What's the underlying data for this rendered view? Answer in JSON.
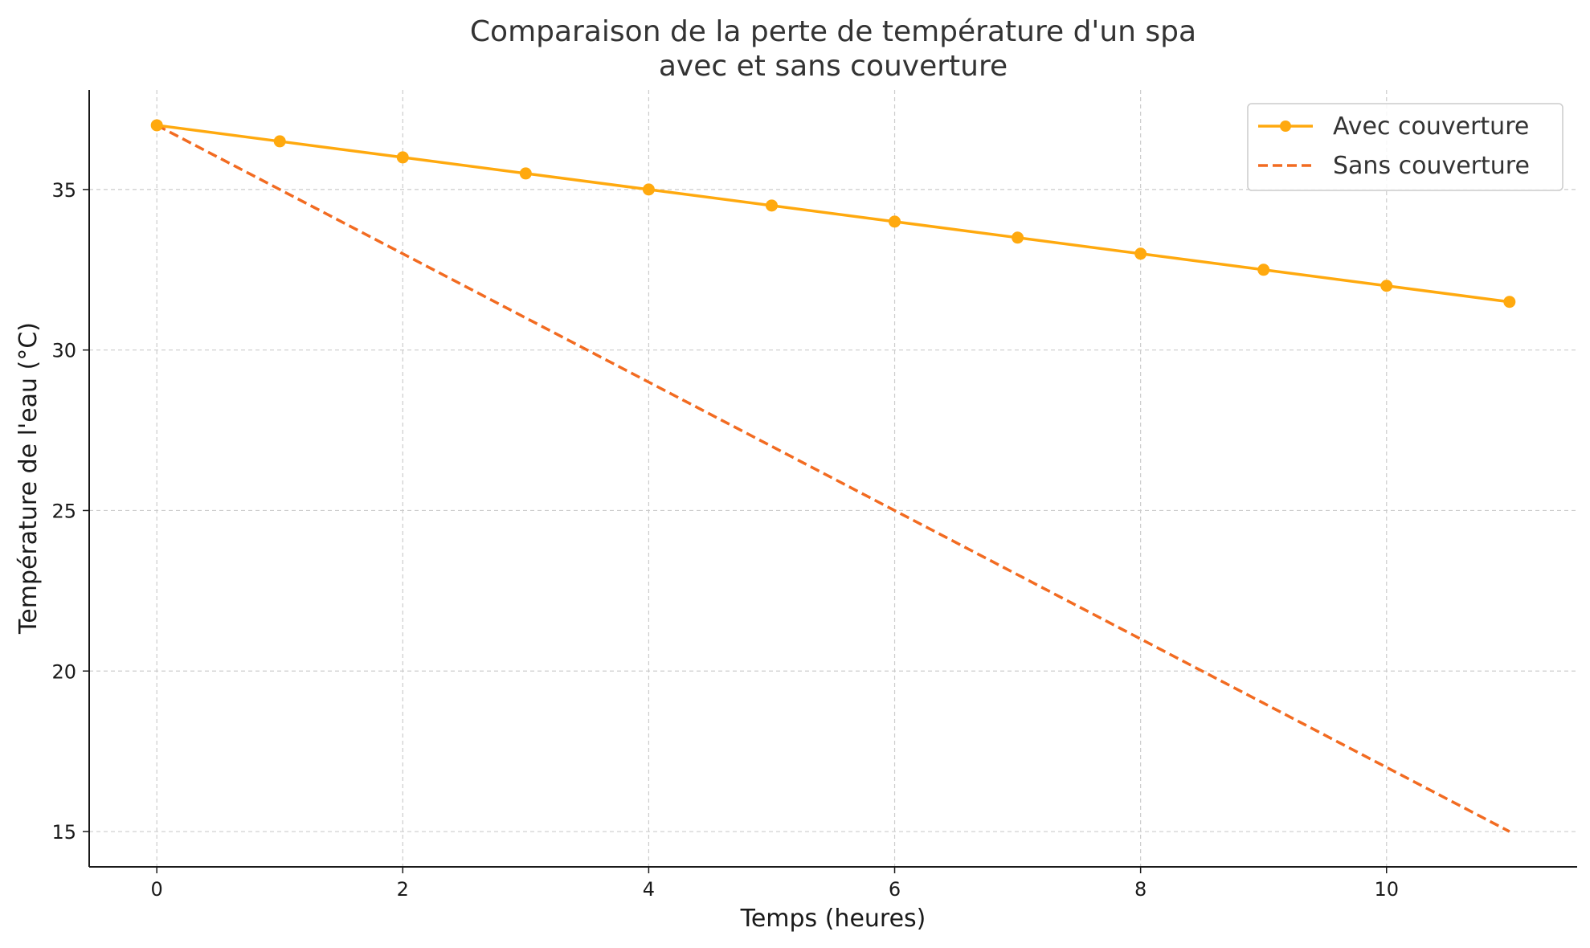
{
  "chart_data": {
    "type": "line",
    "title_line1": "Comparaison de la perte de température d'un spa",
    "title_line2": "avec et sans couverture",
    "xlabel": "Temps (heures)",
    "ylabel": "Température de l'eau (°C)",
    "x": [
      0,
      1,
      2,
      3,
      4,
      5,
      6,
      7,
      8,
      9,
      10,
      11
    ],
    "xlim": [
      -0.55,
      11.55
    ],
    "ylim": [
      13.9,
      38.1
    ],
    "xticks": [
      0,
      2,
      4,
      6,
      8,
      10
    ],
    "yticks": [
      15,
      20,
      25,
      30,
      35
    ],
    "grid": true,
    "legend_position": "top-right",
    "series": [
      {
        "name": "Avec couverture",
        "values": [
          37,
          36.5,
          36,
          35.5,
          35,
          34.5,
          34,
          33.5,
          33,
          32.5,
          32,
          31.5
        ],
        "color": "#FFA90E",
        "style": "solid",
        "marker": "circle"
      },
      {
        "name": "Sans couverture",
        "values": [
          37,
          35,
          33,
          31,
          29,
          27,
          25,
          23,
          21,
          19,
          17,
          15
        ],
        "color": "#F26B21",
        "style": "dashed",
        "marker": "none"
      }
    ]
  }
}
